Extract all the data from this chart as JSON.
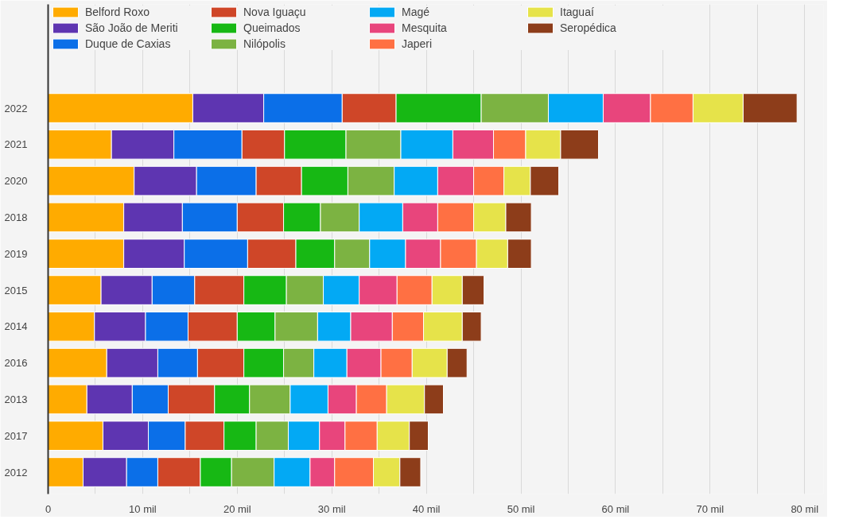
{
  "chart_data": {
    "type": "bar",
    "orientation": "horizontal",
    "stacked": true,
    "categories": [
      "2022",
      "2021",
      "2020",
      "2018",
      "2019",
      "2015",
      "2014",
      "2016",
      "2013",
      "2017",
      "2012"
    ],
    "series": [
      {
        "name": "Belford Roxo",
        "color": "#ffab00",
        "values": [
          15.3,
          6.7,
          9.1,
          8.0,
          8.0,
          5.6,
          4.9,
          6.2,
          4.1,
          5.8,
          3.7
        ]
      },
      {
        "name": "São João de Meriti",
        "color": "#5e35b1",
        "values": [
          7.5,
          6.6,
          6.6,
          6.2,
          6.4,
          5.4,
          5.4,
          5.4,
          4.8,
          4.8,
          4.6
        ]
      },
      {
        "name": "Duque de Caxias",
        "color": "#0b6fe8",
        "values": [
          8.3,
          7.2,
          6.3,
          5.8,
          6.7,
          4.5,
          4.5,
          4.2,
          3.8,
          3.9,
          3.3
        ]
      },
      {
        "name": "Nova Iguaçu",
        "color": "#cf4628",
        "values": [
          5.7,
          4.5,
          4.8,
          4.9,
          5.1,
          5.2,
          5.2,
          4.9,
          4.9,
          4.1,
          4.5
        ]
      },
      {
        "name": "Queimados",
        "color": "#17b814",
        "values": [
          9.0,
          6.5,
          4.9,
          3.9,
          4.1,
          4.5,
          4.0,
          4.2,
          3.7,
          3.4,
          3.3
        ]
      },
      {
        "name": "Nilópolis",
        "color": "#7cb342",
        "values": [
          7.1,
          5.8,
          4.9,
          4.1,
          3.7,
          3.9,
          4.5,
          3.2,
          4.3,
          3.4,
          4.5
        ]
      },
      {
        "name": "Magé",
        "color": "#03a9f4",
        "values": [
          5.8,
          5.5,
          4.6,
          4.6,
          3.8,
          3.8,
          3.5,
          3.5,
          4.0,
          3.3,
          3.8
        ]
      },
      {
        "name": "Mesquita",
        "color": "#e8457c",
        "values": [
          5.0,
          4.3,
          3.8,
          3.7,
          3.7,
          4.0,
          4.4,
          3.6,
          3.0,
          2.7,
          2.6
        ]
      },
      {
        "name": "Japeri",
        "color": "#ff7043",
        "values": [
          4.5,
          3.4,
          3.2,
          3.8,
          3.8,
          3.7,
          3.3,
          3.3,
          3.2,
          3.4,
          4.1
        ]
      },
      {
        "name": "Itaguaí",
        "color": "#e6e34a",
        "values": [
          5.3,
          3.7,
          2.8,
          3.4,
          3.3,
          3.2,
          4.1,
          3.7,
          4.0,
          3.4,
          2.8
        ]
      },
      {
        "name": "Seropédica",
        "color": "#8d3d1a",
        "values": [
          5.7,
          4.0,
          3.0,
          2.7,
          2.5,
          2.3,
          2.0,
          2.1,
          2.0,
          2.0,
          2.2
        ]
      }
    ],
    "xlim": [
      0,
      82
    ],
    "xticks": [
      0,
      {
        "value": 5,
        "label": null
      },
      {
        "value": 10,
        "label": "10 mil"
      },
      {
        "value": 15,
        "label": null
      },
      {
        "value": 20,
        "label": "20 mil"
      },
      {
        "value": 25,
        "label": null
      },
      {
        "value": 30,
        "label": "30 mil"
      },
      {
        "value": 35,
        "label": null
      },
      {
        "value": 40,
        "label": "40 mil"
      },
      {
        "value": 45,
        "label": null
      },
      {
        "value": 50,
        "label": "50 mil"
      },
      {
        "value": 55,
        "label": null
      },
      {
        "value": 60,
        "label": "60 mil"
      },
      {
        "value": 65,
        "label": null
      },
      {
        "value": 70,
        "label": "70 mil"
      },
      {
        "value": 75,
        "label": null
      },
      {
        "value": 80,
        "label": "80 mil"
      }
    ],
    "grid": "x",
    "legend": "top"
  }
}
